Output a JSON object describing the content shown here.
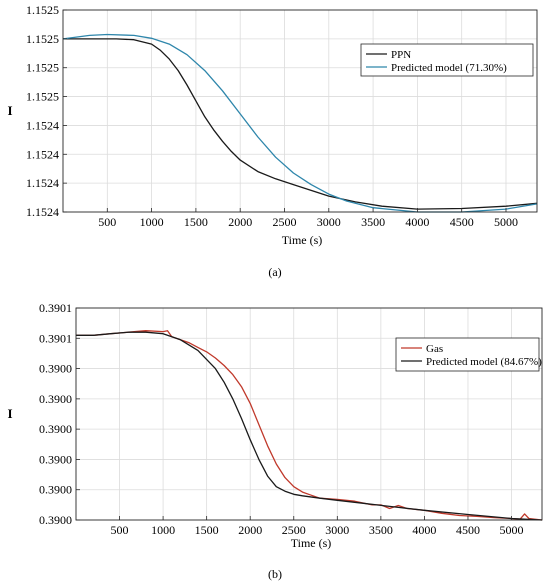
{
  "chart_data": [
    {
      "panel_label": "(a)",
      "type": "line",
      "xlabel": "Time (s)",
      "ylabel": "I",
      "xlim": [
        0,
        5350
      ],
      "ylim": [
        0,
        7
      ],
      "xticks": [
        500,
        1000,
        1500,
        2000,
        2500,
        3000,
        3500,
        4000,
        4500,
        5000
      ],
      "yticks": [
        0,
        1,
        2,
        3,
        4,
        5,
        6,
        7
      ],
      "yticklabels": [
        "1.1524",
        "1.1524",
        "1.1524",
        "1.1524",
        "1.1525",
        "1.1525",
        "1.1525",
        "1.1525"
      ],
      "grid": true,
      "legend_position": "top-right",
      "series": [
        {
          "name": "PPN",
          "color": "#1a1a1a",
          "x": [
            0,
            300,
            600,
            800,
            1000,
            1100,
            1200,
            1300,
            1400,
            1500,
            1600,
            1700,
            1800,
            1900,
            2000,
            2200,
            2400,
            2600,
            2800,
            3000,
            3300,
            3600,
            4000,
            4500,
            5000,
            5350
          ],
          "y": [
            6.0,
            6.0,
            6.0,
            5.97,
            5.82,
            5.6,
            5.3,
            4.9,
            4.4,
            3.85,
            3.3,
            2.85,
            2.45,
            2.1,
            1.8,
            1.4,
            1.15,
            0.95,
            0.75,
            0.55,
            0.35,
            0.2,
            0.1,
            0.12,
            0.2,
            0.3
          ]
        },
        {
          "name": "Predicted model (71.30%)",
          "color": "#2e86ab",
          "x": [
            0,
            300,
            500,
            800,
            1000,
            1200,
            1400,
            1600,
            1800,
            2000,
            2200,
            2400,
            2600,
            2800,
            3000,
            3200,
            3500,
            4000,
            4500,
            5000,
            5350
          ],
          "y": [
            6.0,
            6.12,
            6.15,
            6.12,
            6.02,
            5.82,
            5.45,
            4.9,
            4.2,
            3.4,
            2.6,
            1.9,
            1.35,
            0.95,
            0.62,
            0.38,
            0.15,
            0.0,
            0.0,
            0.1,
            0.28
          ]
        }
      ]
    },
    {
      "panel_label": "(b)",
      "type": "line",
      "xlabel": "Time (s)",
      "ylabel": "I",
      "xlim": [
        0,
        5350
      ],
      "ylim": [
        0,
        7
      ],
      "xticks": [
        500,
        1000,
        1500,
        2000,
        2500,
        3000,
        3500,
        4000,
        4500,
        5000
      ],
      "yticks": [
        0,
        1,
        2,
        3,
        4,
        5,
        6,
        7
      ],
      "yticklabels": [
        "0.3900",
        "0.3900",
        "0.3900",
        "0.3900",
        "0.3900",
        "0.3900",
        "0.3901",
        "0.3901"
      ],
      "grid": true,
      "legend_position": "top-right",
      "series": [
        {
          "name": "Gas",
          "color": "#c0392b",
          "x": [
            0,
            200,
            400,
            600,
            800,
            1000,
            1050,
            1100,
            1200,
            1300,
            1400,
            1500,
            1600,
            1700,
            1800,
            1900,
            2000,
            2100,
            2200,
            2300,
            2400,
            2500,
            2600,
            2700,
            2800,
            3000,
            3200,
            3400,
            3500,
            3600,
            3700,
            3800,
            4000,
            4200,
            4400,
            4600,
            4800,
            5000,
            5100,
            5150,
            5200,
            5350
          ],
          "y": [
            6.1,
            6.1,
            6.15,
            6.2,
            6.25,
            6.22,
            6.25,
            6.05,
            5.95,
            5.85,
            5.7,
            5.55,
            5.35,
            5.1,
            4.8,
            4.4,
            3.85,
            3.15,
            2.45,
            1.85,
            1.4,
            1.1,
            0.92,
            0.82,
            0.72,
            0.68,
            0.62,
            0.5,
            0.5,
            0.38,
            0.48,
            0.38,
            0.32,
            0.22,
            0.15,
            0.12,
            0.08,
            0.05,
            0.03,
            0.2,
            0.05,
            0.0
          ]
        },
        {
          "name": "Predicted model (84.67%)",
          "color": "#1a1a1a",
          "x": [
            0,
            200,
            400,
            600,
            800,
            1000,
            1200,
            1400,
            1600,
            1700,
            1800,
            1900,
            2000,
            2100,
            2200,
            2300,
            2400,
            2500,
            2600,
            2800,
            3000,
            3300,
            3600,
            4000,
            4500,
            5000,
            5350
          ],
          "y": [
            6.1,
            6.1,
            6.15,
            6.2,
            6.2,
            6.15,
            5.95,
            5.6,
            5.0,
            4.55,
            4.0,
            3.35,
            2.65,
            2.0,
            1.45,
            1.1,
            0.95,
            0.85,
            0.8,
            0.72,
            0.65,
            0.55,
            0.45,
            0.32,
            0.18,
            0.05,
            0.0
          ]
        }
      ]
    }
  ]
}
